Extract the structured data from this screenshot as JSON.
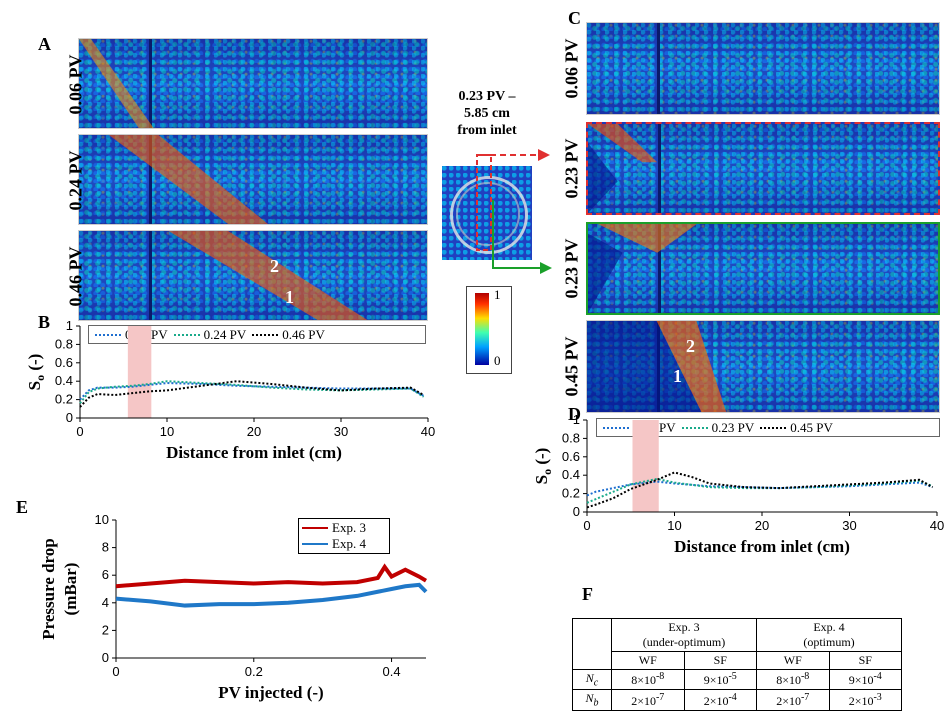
{
  "labels": {
    "A": "A",
    "B": "B",
    "C": "C",
    "D": "D",
    "E": "E",
    "F": "F"
  },
  "panelA": {
    "pv": [
      "0.06 PV",
      "0.24 PV",
      "0.46 PV"
    ],
    "marks": [
      "2",
      "1"
    ]
  },
  "panelC": {
    "pv": [
      "0.06 PV",
      "0.23 PV",
      "0.23 PV",
      "0.45 PV"
    ],
    "marks": [
      "2",
      "1"
    ]
  },
  "inset": {
    "line1": "0.23 PV –",
    "line2": "5.85 cm",
    "line3": "from inlet"
  },
  "colorbar": {
    "max": "1",
    "min": "0"
  },
  "colors": {
    "red_box": "#e03030",
    "green_box": "#1aa02a",
    "s006": "#1f6fd0",
    "s024": "#1aaa8a",
    "s046": "#000000",
    "exp3": "#c00000",
    "exp4": "#1f78c8"
  },
  "chart_data": [
    {
      "id": "B",
      "type": "line",
      "xlabel": "Distance from inlet (cm)",
      "ylabel": "S",
      "ylabel_sub": "o",
      "ylabel_tail": " (-)",
      "xlim": [
        0,
        40
      ],
      "ylim": [
        0,
        1
      ],
      "xticks": [
        "0",
        "10",
        "20",
        "30",
        "40"
      ],
      "yticks": [
        "0",
        "0.2",
        "0.4",
        "0.6",
        "0.8",
        "1"
      ],
      "shaded_region": [
        5.5,
        8.2
      ],
      "series": [
        {
          "name": "0.06 PV",
          "x": [
            0,
            1,
            2,
            4,
            6,
            8,
            10,
            14,
            18,
            22,
            26,
            30,
            34,
            38,
            39.5
          ],
          "y": [
            0.2,
            0.3,
            0.33,
            0.33,
            0.34,
            0.36,
            0.38,
            0.37,
            0.35,
            0.34,
            0.33,
            0.32,
            0.32,
            0.32,
            0.24
          ]
        },
        {
          "name": "0.24 PV",
          "x": [
            0,
            1,
            2,
            4,
            6,
            8,
            10,
            14,
            18,
            22,
            26,
            30,
            34,
            38,
            39.5
          ],
          "y": [
            0.16,
            0.28,
            0.32,
            0.34,
            0.35,
            0.37,
            0.4,
            0.38,
            0.36,
            0.33,
            0.31,
            0.3,
            0.31,
            0.32,
            0.23
          ]
        },
        {
          "name": "0.46 PV",
          "x": [
            0,
            1,
            2,
            4,
            6,
            8,
            10,
            14,
            18,
            22,
            26,
            30,
            34,
            38,
            39.5
          ],
          "y": [
            0.12,
            0.22,
            0.26,
            0.25,
            0.27,
            0.29,
            0.3,
            0.35,
            0.4,
            0.37,
            0.33,
            0.3,
            0.32,
            0.33,
            0.25
          ]
        }
      ]
    },
    {
      "id": "D",
      "type": "line",
      "xlabel": "Distance from inlet (cm)",
      "ylabel": "S",
      "ylabel_sub": "o",
      "ylabel_tail": " (-)",
      "xlim": [
        0,
        40
      ],
      "ylim": [
        0,
        1
      ],
      "xticks": [
        "0",
        "10",
        "20",
        "30",
        "40"
      ],
      "yticks": [
        "0",
        "0.2",
        "0.4",
        "0.6",
        "0.8",
        "1"
      ],
      "shaded_region": [
        5.2,
        8.2
      ],
      "series": [
        {
          "name": "0.06 PV",
          "x": [
            0,
            1,
            3,
            5,
            8,
            10,
            14,
            18,
            22,
            26,
            30,
            34,
            38,
            39.5
          ],
          "y": [
            0.18,
            0.22,
            0.26,
            0.3,
            0.33,
            0.31,
            0.28,
            0.27,
            0.26,
            0.27,
            0.28,
            0.3,
            0.32,
            0.27
          ]
        },
        {
          "name": "0.23 PV",
          "x": [
            0,
            1,
            3,
            5,
            8,
            10,
            14,
            18,
            22,
            26,
            30,
            34,
            38,
            39.5
          ],
          "y": [
            0.1,
            0.14,
            0.22,
            0.3,
            0.36,
            0.32,
            0.27,
            0.26,
            0.26,
            0.27,
            0.29,
            0.31,
            0.34,
            0.28
          ]
        },
        {
          "name": "0.45 PV",
          "x": [
            0,
            1,
            3,
            5,
            8,
            10,
            12,
            14,
            18,
            22,
            26,
            30,
            34,
            38,
            39.5
          ],
          "y": [
            0.05,
            0.08,
            0.15,
            0.25,
            0.35,
            0.43,
            0.38,
            0.31,
            0.27,
            0.26,
            0.28,
            0.3,
            0.32,
            0.35,
            0.27
          ]
        }
      ]
    },
    {
      "id": "E",
      "type": "line",
      "xlabel": "PV injected (-)",
      "ylabel": "Pressure drop",
      "ylabel2": "(mBar)",
      "xlim": [
        0,
        0.45
      ],
      "ylim": [
        0,
        10
      ],
      "xticks": [
        "0",
        "0.2",
        "0.4"
      ],
      "yticks": [
        "0",
        "2",
        "4",
        "6",
        "8",
        "10"
      ],
      "series": [
        {
          "name": "Exp. 3",
          "x": [
            0,
            0.05,
            0.1,
            0.15,
            0.2,
            0.25,
            0.3,
            0.35,
            0.38,
            0.39,
            0.4,
            0.42,
            0.44,
            0.45
          ],
          "y": [
            5.2,
            5.4,
            5.6,
            5.5,
            5.4,
            5.5,
            5.4,
            5.5,
            5.8,
            6.6,
            5.9,
            6.4,
            5.9,
            5.6
          ]
        },
        {
          "name": "Exp. 4",
          "x": [
            0,
            0.05,
            0.1,
            0.15,
            0.2,
            0.25,
            0.3,
            0.35,
            0.38,
            0.4,
            0.42,
            0.44,
            0.45
          ],
          "y": [
            4.3,
            4.1,
            3.8,
            3.9,
            3.9,
            4.0,
            4.2,
            4.5,
            4.8,
            5.0,
            5.2,
            5.3,
            4.8
          ]
        }
      ]
    },
    {
      "id": "F",
      "type": "table",
      "head1": [
        "",
        "Exp. 3",
        "Exp. 4"
      ],
      "head1b": [
        "(under-optimum)",
        "(optimum)"
      ],
      "head2": [
        "WF",
        "SF",
        "WF",
        "SF"
      ],
      "rows": [
        {
          "label": "N",
          "sub": "c",
          "cells": [
            "8×10",
            "-8",
            "9×10",
            "-5",
            "8×10",
            "-8",
            "9×10",
            "-4"
          ]
        },
        {
          "label": "N",
          "sub": "b",
          "cells": [
            "2×10",
            "-7",
            "2×10",
            "-4",
            "2×10",
            "-7",
            "2×10",
            "-3"
          ]
        }
      ]
    }
  ]
}
